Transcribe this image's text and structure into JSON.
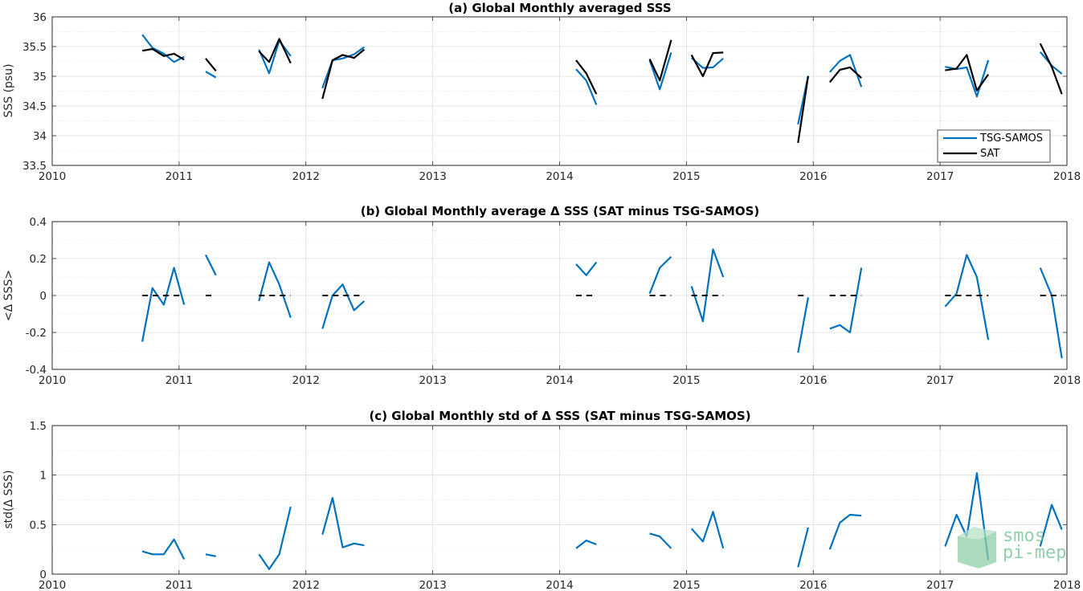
{
  "chart_data": [
    {
      "type": "line",
      "title": "(a) Global Monthly averaged SSS",
      "ylabel": "SSS (psu)",
      "xlim": [
        2010,
        2018
      ],
      "ylim": [
        33.5,
        36
      ],
      "xticks": [
        "2010",
        "2011",
        "2012",
        "2013",
        "2014",
        "2015",
        "2016",
        "2017",
        "2018"
      ],
      "yticks": [
        "33.5",
        "34",
        "34.5",
        "35",
        "35.5",
        "36"
      ],
      "grid": true,
      "legend": "bottom-right",
      "series": [
        {
          "name": "TSG-SAMOS",
          "color": "#0072bd",
          "segments": [
            [
              [
                2010.71,
                35.7
              ],
              [
                2010.79,
                35.48
              ],
              [
                2010.88,
                35.38
              ],
              [
                2010.96,
                35.24
              ],
              [
                2011.04,
                35.33
              ]
            ],
            [
              [
                2011.21,
                35.08
              ],
              [
                2011.29,
                34.98
              ]
            ],
            [
              [
                2011.63,
                35.45
              ],
              [
                2011.71,
                35.05
              ],
              [
                2011.79,
                35.6
              ],
              [
                2011.88,
                35.34
              ]
            ],
            [
              [
                2012.13,
                34.8
              ],
              [
                2012.21,
                35.27
              ],
              [
                2012.29,
                35.3
              ],
              [
                2012.38,
                35.37
              ],
              [
                2012.46,
                35.49
              ]
            ],
            [
              [
                2014.13,
                35.12
              ],
              [
                2014.21,
                34.93
              ],
              [
                2014.29,
                34.52
              ]
            ],
            [
              [
                2014.71,
                35.27
              ],
              [
                2014.79,
                34.78
              ],
              [
                2014.88,
                35.4
              ]
            ],
            [
              [
                2015.04,
                35.31
              ],
              [
                2015.13,
                35.14
              ],
              [
                2015.21,
                35.15
              ],
              [
                2015.29,
                35.3
              ]
            ],
            [
              [
                2015.88,
                34.19
              ],
              [
                2015.96,
                35.01
              ]
            ],
            [
              [
                2016.13,
                35.07
              ],
              [
                2016.21,
                35.26
              ],
              [
                2016.29,
                35.36
              ],
              [
                2016.38,
                34.82
              ]
            ],
            [
              [
                2017.04,
                35.16
              ],
              [
                2017.13,
                35.12
              ],
              [
                2017.21,
                35.15
              ],
              [
                2017.29,
                34.66
              ],
              [
                2017.38,
                35.27
              ]
            ],
            [
              [
                2017.79,
                35.41
              ],
              [
                2017.88,
                35.18
              ],
              [
                2017.96,
                35.04
              ]
            ]
          ]
        },
        {
          "name": "SAT",
          "color": "#000000",
          "segments": [
            [
              [
                2010.71,
                35.43
              ],
              [
                2010.79,
                35.46
              ],
              [
                2010.88,
                35.34
              ],
              [
                2010.96,
                35.38
              ],
              [
                2011.04,
                35.28
              ]
            ],
            [
              [
                2011.21,
                35.3
              ],
              [
                2011.29,
                35.09
              ]
            ],
            [
              [
                2011.63,
                35.42
              ],
              [
                2011.71,
                35.24
              ],
              [
                2011.79,
                35.63
              ],
              [
                2011.88,
                35.22
              ]
            ],
            [
              [
                2012.13,
                34.62
              ],
              [
                2012.21,
                35.27
              ],
              [
                2012.29,
                35.36
              ],
              [
                2012.38,
                35.31
              ],
              [
                2012.46,
                35.45
              ]
            ],
            [
              [
                2014.13,
                35.27
              ],
              [
                2014.21,
                35.05
              ],
              [
                2014.29,
                34.7
              ]
            ],
            [
              [
                2014.71,
                35.29
              ],
              [
                2014.79,
                34.93
              ],
              [
                2014.88,
                35.61
              ]
            ],
            [
              [
                2015.04,
                35.36
              ],
              [
                2015.13,
                35.0
              ],
              [
                2015.21,
                35.39
              ],
              [
                2015.29,
                35.4
              ]
            ],
            [
              [
                2015.88,
                33.88
              ],
              [
                2015.96,
                35.0
              ]
            ],
            [
              [
                2016.13,
                34.9
              ],
              [
                2016.21,
                35.11
              ],
              [
                2016.29,
                35.15
              ],
              [
                2016.38,
                34.97
              ]
            ],
            [
              [
                2017.04,
                35.1
              ],
              [
                2017.13,
                35.13
              ],
              [
                2017.21,
                35.36
              ],
              [
                2017.29,
                34.76
              ],
              [
                2017.38,
                35.03
              ]
            ],
            [
              [
                2017.79,
                35.55
              ],
              [
                2017.88,
                35.16
              ],
              [
                2017.96,
                34.7
              ]
            ]
          ]
        }
      ]
    },
    {
      "type": "line",
      "title": "(b) Global Monthly average Δ SSS (SAT minus TSG-SAMOS)",
      "ylabel": "<Δ SSS>",
      "xlim": [
        2010,
        2018
      ],
      "ylim": [
        -0.4,
        0.4
      ],
      "xticks": [
        "2010",
        "2011",
        "2012",
        "2013",
        "2014",
        "2015",
        "2016",
        "2017",
        "2018"
      ],
      "yticks": [
        "-0.4",
        "-0.2",
        "0",
        "0.2",
        "0.4"
      ],
      "grid": true,
      "series": [
        {
          "color": "#0072bd",
          "segments": [
            [
              [
                2010.71,
                -0.25
              ],
              [
                2010.79,
                0.04
              ],
              [
                2010.88,
                -0.05
              ],
              [
                2010.96,
                0.15
              ],
              [
                2011.04,
                -0.05
              ]
            ],
            [
              [
                2011.21,
                0.22
              ],
              [
                2011.29,
                0.11
              ]
            ],
            [
              [
                2011.63,
                -0.03
              ],
              [
                2011.71,
                0.18
              ],
              [
                2011.79,
                0.06
              ],
              [
                2011.88,
                -0.12
              ]
            ],
            [
              [
                2012.13,
                -0.18
              ],
              [
                2012.21,
                0.0
              ],
              [
                2012.29,
                0.06
              ],
              [
                2012.38,
                -0.08
              ],
              [
                2012.46,
                -0.03
              ]
            ],
            [
              [
                2014.13,
                0.17
              ],
              [
                2014.21,
                0.11
              ],
              [
                2014.29,
                0.18
              ]
            ],
            [
              [
                2014.71,
                0.01
              ],
              [
                2014.79,
                0.15
              ],
              [
                2014.88,
                0.21
              ]
            ],
            [
              [
                2015.04,
                0.05
              ],
              [
                2015.13,
                -0.14
              ],
              [
                2015.21,
                0.25
              ],
              [
                2015.29,
                0.1
              ]
            ],
            [
              [
                2015.88,
                -0.31
              ],
              [
                2015.96,
                -0.01
              ]
            ],
            [
              [
                2016.13,
                -0.18
              ],
              [
                2016.21,
                -0.16
              ],
              [
                2016.29,
                -0.2
              ],
              [
                2016.38,
                0.15
              ]
            ],
            [
              [
                2017.04,
                -0.06
              ],
              [
                2017.13,
                0.01
              ],
              [
                2017.21,
                0.22
              ],
              [
                2017.29,
                0.1
              ],
              [
                2017.38,
                -0.24
              ]
            ],
            [
              [
                2017.79,
                0.15
              ],
              [
                2017.88,
                0.0
              ],
              [
                2017.96,
                -0.34
              ]
            ]
          ]
        },
        {
          "color": "#000000",
          "dashed": true,
          "segments": [
            [
              [
                2010.71,
                0
              ],
              [
                2011.04,
                0
              ]
            ],
            [
              [
                2011.21,
                0
              ],
              [
                2011.29,
                0
              ]
            ],
            [
              [
                2011.63,
                0
              ],
              [
                2011.88,
                0
              ]
            ],
            [
              [
                2012.13,
                0
              ],
              [
                2012.46,
                0
              ]
            ],
            [
              [
                2014.13,
                0
              ],
              [
                2014.29,
                0
              ]
            ],
            [
              [
                2014.71,
                0
              ],
              [
                2014.88,
                0
              ]
            ],
            [
              [
                2015.04,
                0
              ],
              [
                2015.29,
                0
              ]
            ],
            [
              [
                2015.88,
                0
              ],
              [
                2015.96,
                0
              ]
            ],
            [
              [
                2016.13,
                0
              ],
              [
                2016.38,
                0
              ]
            ],
            [
              [
                2017.04,
                0
              ],
              [
                2017.38,
                0
              ]
            ],
            [
              [
                2017.79,
                0
              ],
              [
                2017.96,
                0
              ]
            ]
          ]
        }
      ]
    },
    {
      "type": "line",
      "title": "(c) Global Monthly std of Δ SSS (SAT minus TSG-SAMOS)",
      "ylabel": "std(Δ SSS)",
      "xlim": [
        2010,
        2018
      ],
      "ylim": [
        0,
        1.5
      ],
      "xticks": [
        "2010",
        "2011",
        "2012",
        "2013",
        "2014",
        "2015",
        "2016",
        "2017",
        "2018"
      ],
      "yticks": [
        "0",
        "0.5",
        "1",
        "1.5"
      ],
      "grid": true,
      "series": [
        {
          "color": "#0072bd",
          "segments": [
            [
              [
                2010.71,
                0.23
              ],
              [
                2010.79,
                0.2
              ],
              [
                2010.88,
                0.2
              ],
              [
                2010.96,
                0.35
              ],
              [
                2011.04,
                0.15
              ]
            ],
            [
              [
                2011.21,
                0.2
              ],
              [
                2011.29,
                0.18
              ]
            ],
            [
              [
                2011.63,
                0.2
              ],
              [
                2011.71,
                0.05
              ],
              [
                2011.79,
                0.2
              ],
              [
                2011.88,
                0.68
              ]
            ],
            [
              [
                2012.13,
                0.4
              ],
              [
                2012.21,
                0.77
              ],
              [
                2012.29,
                0.27
              ],
              [
                2012.38,
                0.31
              ],
              [
                2012.46,
                0.29
              ]
            ],
            [
              [
                2014.13,
                0.26
              ],
              [
                2014.21,
                0.34
              ],
              [
                2014.29,
                0.3
              ]
            ],
            [
              [
                2014.71,
                0.41
              ],
              [
                2014.79,
                0.38
              ],
              [
                2014.88,
                0.26
              ]
            ],
            [
              [
                2015.04,
                0.46
              ],
              [
                2015.13,
                0.33
              ],
              [
                2015.21,
                0.63
              ],
              [
                2015.29,
                0.26
              ]
            ],
            [
              [
                2015.88,
                0.07
              ],
              [
                2015.96,
                0.47
              ]
            ],
            [
              [
                2016.13,
                0.25
              ],
              [
                2016.21,
                0.52
              ],
              [
                2016.29,
                0.6
              ],
              [
                2016.38,
                0.59
              ]
            ],
            [
              [
                2017.04,
                0.28
              ],
              [
                2017.13,
                0.6
              ],
              [
                2017.21,
                0.38
              ],
              [
                2017.29,
                1.02
              ],
              [
                2017.38,
                0.14
              ]
            ],
            [
              [
                2017.79,
                0.28
              ],
              [
                2017.88,
                0.7
              ],
              [
                2017.96,
                0.45
              ]
            ]
          ]
        }
      ]
    }
  ],
  "watermark": {
    "line1": "smos",
    "line2": "pi-mep"
  }
}
